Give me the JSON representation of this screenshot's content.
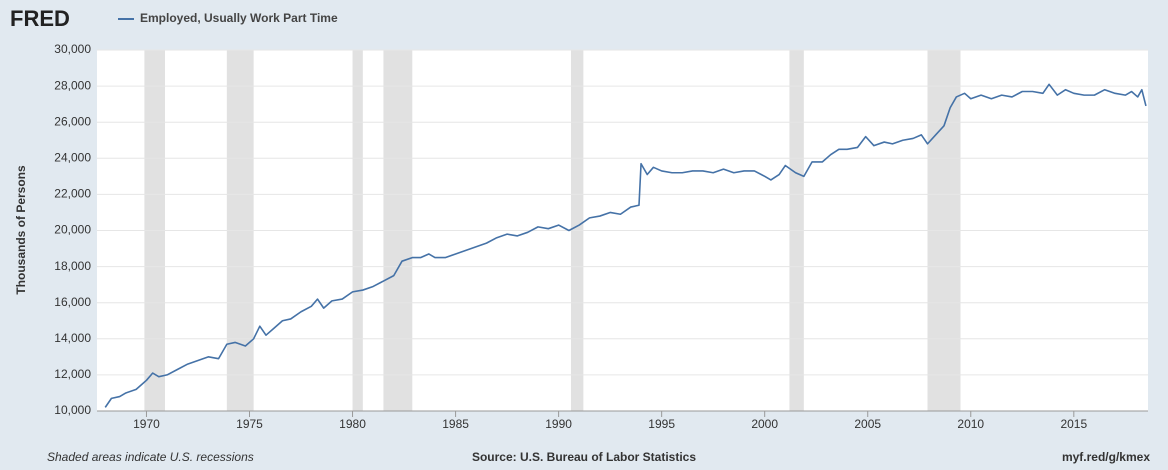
{
  "header": {
    "logo": "FRED"
  },
  "footer": {
    "note": "Shaded areas indicate U.S. recessions",
    "source": "Source: U.S. Bureau of Labor Statistics",
    "link": "myf.red/g/kmex"
  },
  "chart_data": {
    "type": "line",
    "y_label": "Thousands of Persons",
    "xlim": [
      1967.6,
      2018.6
    ],
    "ylim": [
      10000,
      30000
    ],
    "xticks": [
      1970,
      1975,
      1980,
      1985,
      1990,
      1995,
      2000,
      2005,
      2010,
      2015
    ],
    "yticks": [
      {
        "value": 10000,
        "label": "10,000"
      },
      {
        "value": 12000,
        "label": "12,000"
      },
      {
        "value": 14000,
        "label": "14,000"
      },
      {
        "value": 16000,
        "label": "16,000"
      },
      {
        "value": 18000,
        "label": "18,000"
      },
      {
        "value": 20000,
        "label": "20,000"
      },
      {
        "value": 22000,
        "label": "22,000"
      },
      {
        "value": 24000,
        "label": "24,000"
      },
      {
        "value": 26000,
        "label": "26,000"
      },
      {
        "value": 28000,
        "label": "28,000"
      },
      {
        "value": 30000,
        "label": "30,000"
      }
    ],
    "grid": true,
    "recessions": [
      [
        1969.9,
        1970.9
      ],
      [
        1973.9,
        1975.2
      ],
      [
        1980.0,
        1980.5
      ],
      [
        1981.5,
        1982.9
      ],
      [
        1990.6,
        1991.2
      ],
      [
        2001.2,
        2001.9
      ],
      [
        2007.9,
        2009.5
      ]
    ],
    "recession_color": "#e1e1e1",
    "x": [
      1968.0,
      1968.3,
      1968.7,
      1969.0,
      1969.5,
      1970.0,
      1970.3,
      1970.6,
      1971.0,
      1971.5,
      1972.0,
      1972.5,
      1973.0,
      1973.5,
      1973.9,
      1974.3,
      1974.8,
      1975.2,
      1975.5,
      1975.8,
      1976.2,
      1976.6,
      1977.0,
      1977.5,
      1978.0,
      1978.3,
      1978.6,
      1979.0,
      1979.5,
      1980.0,
      1980.5,
      1981.0,
      1981.5,
      1982.0,
      1982.4,
      1982.9,
      1983.3,
      1983.7,
      1984.0,
      1984.5,
      1985.0,
      1985.5,
      1986.0,
      1986.5,
      1987.0,
      1987.5,
      1988.0,
      1988.5,
      1989.0,
      1989.5,
      1990.0,
      1990.5,
      1991.0,
      1991.5,
      1992.0,
      1992.5,
      1993.0,
      1993.5,
      1993.9,
      1994.0,
      1994.3,
      1994.6,
      1995.0,
      1995.5,
      1996.0,
      1996.5,
      1997.0,
      1997.5,
      1998.0,
      1998.5,
      1999.0,
      1999.5,
      2000.0,
      2000.3,
      2000.7,
      2001.0,
      2001.5,
      2001.9,
      2002.3,
      2002.8,
      2003.2,
      2003.6,
      2004.0,
      2004.5,
      2004.9,
      2005.3,
      2005.8,
      2006.2,
      2006.7,
      2007.2,
      2007.6,
      2007.9,
      2008.3,
      2008.7,
      2009.0,
      2009.3,
      2009.7,
      2010.0,
      2010.5,
      2011.0,
      2011.5,
      2012.0,
      2012.5,
      2013.0,
      2013.5,
      2013.8,
      2014.2,
      2014.6,
      2015.0,
      2015.5,
      2016.0,
      2016.5,
      2017.0,
      2017.5,
      2017.8,
      2018.1,
      2018.3,
      2018.5
    ],
    "series": [
      {
        "name": "Employed, Usually Work Part Time",
        "color": "#4572a7",
        "values": [
          10200,
          10700,
          10800,
          11000,
          11200,
          11700,
          12100,
          11900,
          12000,
          12300,
          12600,
          12800,
          13000,
          12900,
          13700,
          13800,
          13600,
          14000,
          14700,
          14200,
          14600,
          15000,
          15100,
          15500,
          15800,
          16200,
          15700,
          16100,
          16200,
          16600,
          16700,
          16900,
          17200,
          17500,
          18300,
          18500,
          18500,
          18700,
          18500,
          18500,
          18700,
          18900,
          19100,
          19300,
          19600,
          19800,
          19700,
          19900,
          20200,
          20100,
          20300,
          20000,
          20300,
          20700,
          20800,
          21000,
          20900,
          21300,
          21400,
          23700,
          23100,
          23500,
          23300,
          23200,
          23200,
          23300,
          23300,
          23200,
          23400,
          23200,
          23300,
          23300,
          23000,
          22800,
          23100,
          23600,
          23200,
          23000,
          23800,
          23800,
          24200,
          24500,
          24500,
          24600,
          25200,
          24700,
          24900,
          24800,
          25000,
          25100,
          25300,
          24800,
          25300,
          25800,
          26800,
          27400,
          27600,
          27300,
          27500,
          27300,
          27500,
          27400,
          27700,
          27700,
          27600,
          28100,
          27500,
          27800,
          27600,
          27500,
          27500,
          27800,
          27600,
          27500,
          27700,
          27400,
          27800,
          26900
        ]
      }
    ]
  }
}
